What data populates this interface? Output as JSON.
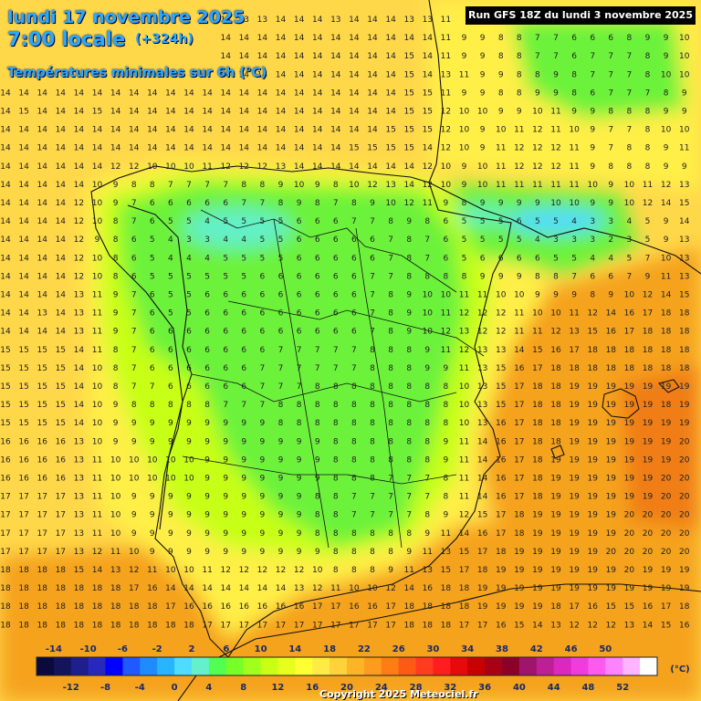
{
  "header": {
    "date": "lundi 17 novembre 2025",
    "time": "7:00 locale",
    "offset": "(+324h)",
    "subtitle": "Températures minimales sur 6h (°C)",
    "run": "Run GFS 18Z du lundi 3 novembre 2025"
  },
  "footer": {
    "copyright": "Copyright 2025 Meteociel.fr"
  },
  "legend": {
    "unit": "(°C)",
    "top_labels": [
      "-14",
      "-10",
      "-6",
      "-2",
      "2",
      "6",
      "10",
      "14",
      "18",
      "22",
      "26",
      "30",
      "34",
      "38",
      "42",
      "46",
      "50"
    ],
    "bottom_labels": [
      "-12",
      "-8",
      "-4",
      "0",
      "4",
      "8",
      "12",
      "16",
      "20",
      "24",
      "28",
      "32",
      "36",
      "40",
      "44",
      "48",
      "52"
    ],
    "colors": [
      "#0a0a3c",
      "#14145a",
      "#1e1e8c",
      "#2828be",
      "#0000ff",
      "#1e5aff",
      "#1e8cff",
      "#28b4ff",
      "#50dcff",
      "#64f0c8",
      "#50ff50",
      "#78ff28",
      "#a0ff1e",
      "#c8ff14",
      "#e6ff1e",
      "#ffff32",
      "#ffeb46",
      "#ffd23c",
      "#ffb428",
      "#ff9b1e",
      "#ff7d14",
      "#ff5a14",
      "#ff3c1e",
      "#ff1e1e",
      "#e60a0a",
      "#c80000",
      "#aa0014",
      "#8c0028",
      "#a0146e",
      "#be1e96",
      "#dc28be",
      "#f03cdc",
      "#ff5af0",
      "#ff82ff",
      "#ffb4ff",
      "#ffffff"
    ]
  },
  "map": {
    "colors": {
      "sea_warm": "#f5a21f",
      "sea_hot": "#f07d14",
      "mild": "#ffd84a",
      "yellow": "#ffef46",
      "yellow_green": "#c8ff14",
      "green": "#6cf23a",
      "cold_cyan": "#64f0c8",
      "border": "#111111"
    },
    "numbers": {
      "rows": [
        "14 14 14 13 13 14 13 13 14 13 13 14 14 13 13 14 14 14 13 14 14 14 13 13 11 11 10 9 10 9 8 8 9 9 9 9 10 10",
        "14 14 14 14 14 14 14 14 14 14 14 14 14 14 14 14 14 14 14 14 14 14 14 14 11 9 9 8 8 7 7 6 6 6 8 9 9 10",
        "14 14 14 14 14 14 14 14 14 14 14 14 14 14 14 14 14 14 14 14 14 14 15 14 11 9 9 8 8 7 7 6 7 7 7 8 9 10",
        "14 14 14 14 14 14 14 14 14 14 14 14 14 14 14 14 14 14 14 14 14 14 15 14 13 11 9 9 8 8 9 8 7 7 7 8 10 10",
        "14 14 14 14 14 14 14 14 14 14 14 14 14 14 14 14 14 14 14 14 14 14 15 15 11 9 9 8 8 9 9 8 6 7 7 7 8 9",
        "14 15 14 14 14 15 14 14 14 14 14 14 14 14 14 14 14 14 14 14 14 14 15 15 12 10 10 9 9 10 11 9 9 8 8 8 9 9",
        "14 14 14 14 14 14 14 14 14 14 14 14 14 14 14 14 14 14 14 14 14 15 15 15 12 10 9 10 11 12 11 10 9 7 7 8 10 10",
        "14 14 14 14 14 14 14 14 14 14 14 14 14 14 14 14 14 14 14 15 15 15 15 14 12 10 9 11 12 12 12 11 9 7 8 8 9 11",
        "14 14 14 14 14 14 12 12 10 10 10 11 12 12 12 13 14 14 14 14 14 14 14 12 10 9 10 11 12 12 12 11 9 8 8 8 9 9",
        "14 14 14 14 14 10 9 8 8 7 7 7 7 8 8 9 10 9 8 10 12 13 14 12 10 9 10 11 11 11 11 11 10 9 10 11 12 13",
        "14 14 14 14 12 10 9 7 6 6 6 6 6 7 7 8 9 8 7 8 9 10 12 11 9 8 9 9 9 9 10 10 9 9 10 12 14 15",
        "14 14 14 14 12 10 8 7 6 5 5 4 5 5 5 5 6 6 6 7 7 8 9 8 6 5 5 5 6 5 5 4 3 3 4 5 9 14",
        "14 14 14 14 12 9 8 6 5 4 3 3 4 4 5 5 6 6 6 6 6 7 8 7 6 5 5 5 5 4 3 3 3 2 3 5 9 13",
        "14 14 14 14 12 10 8 6 5 4 4 4 5 5 5 5 6 6 6 6 6 7 8 7 6 5 6 6 6 6 5 5 4 4 5 7 10 13",
        "14 14 14 14 12 10 8 6 5 5 5 5 5 5 6 6 6 6 6 6 7 7 8 8 8 8 9 9 9 8 8 7 6 6 7 9 11 13",
        "14 14 14 14 13 11 9 7 6 5 5 6 6 6 6 6 6 6 6 6 7 8 9 10 10 11 11 10 10 9 9 9 8 9 10 12 14 15",
        "14 14 13 14 13 11 9 7 6 5 5 6 6 6 6 6 6 6 6 6 7 8 9 10 11 12 12 12 11 10 10 11 12 14 16 17 18 18",
        "14 14 14 14 13 11 9 7 6 6 6 6 6 6 6 6 6 6 6 6 7 8 9 10 12 13 12 12 11 11 12 13 15 16 17 18 18 18",
        "15 15 15 15 14 11 8 7 6 6 6 6 6 6 6 7 7 7 7 7 8 8 8 9 11 12 13 13 14 15 16 17 18 18 18 18 18 18",
        "15 15 15 15 14 10 8 7 6 6 6 6 6 6 7 7 7 7 7 7 8 8 8 9 9 11 13 15 16 17 18 18 18 18 18 18 18 18",
        "15 15 15 15 14 10 8 7 7 6 6 6 6 6 7 7 7 8 8 8 8 8 8 8 8 10 13 15 17 18 18 19 19 19 19 19 19 19",
        "15 15 15 15 14 10 9 8 8 8 8 8 7 7 7 8 8 8 8 8 8 8 8 8 8 10 13 15 17 18 18 19 19 19 19 19 18 19",
        "15 15 15 15 14 10 9 9 9 9 9 9 9 9 9 8 8 8 8 8 8 8 8 8 8 10 13 16 17 18 18 19 19 19 19 19 19 19",
        "16 16 16 16 13 10 9 9 9 9 9 9 9 9 9 9 9 9 8 8 8 8 8 8 9 11 14 16 17 18 18 19 19 19 19 19 19 20",
        "16 16 16 16 13 11 10 10 10 10 10 9 9 9 9 9 9 9 8 8 8 8 8 8 9 11 14 16 17 18 19 19 19 19 19 19 19 20",
        "16 16 16 16 13 11 10 10 10 10 10 9 9 9 9 9 9 9 8 8 8 7 7 7 8 11 14 16 17 18 19 19 19 19 19 19 20 20",
        "17 17 17 17 13 11 10 9 9 9 9 9 9 9 9 9 9 8 8 7 7 7 7 7 8 11 14 16 17 18 19 19 19 19 19 19 20 20",
        "17 17 17 17 13 11 10 9 9 9 9 9 9 9 9 9 9 8 8 7 7 7 7 8 9 12 15 17 18 19 19 19 19 19 20 20 20 20",
        "17 17 17 17 13 11 10 9 9 9 9 9 9 9 9 9 9 8 8 8 8 8 8 9 11 14 16 17 18 19 19 19 19 19 20 20 20 20",
        "17 17 17 17 13 12 11 10 9 9 9 9 9 9 9 9 9 9 8 8 8 8 9 11 13 15 17 18 19 19 19 19 19 20 20 20 20 20",
        "18 18 18 18 15 14 13 12 11 10 10 11 12 12 12 12 12 10 8 8 8 9 11 13 15 17 18 19 19 19 19 19 19 19 20 19 19 19",
        "18 18 18 18 18 18 18 17 16 14 14 14 14 14 14 14 13 12 11 10 10 12 14 16 18 18 19 19 19 19 19 19 19 19 19 19 19 19",
        "18 18 18 18 18 18 18 18 18 17 16 16 16 16 16 16 16 17 17 16 16 17 18 18 18 18 19 19 19 19 18 17 16 15 15 16 17 18",
        "18 18 18 18 18 18 18 18 18 18 18 17 17 17 17 17 17 17 17 17 17 17 18 18 18 17 17 16 15 14 13 12 12 12 13 14 15 16",
        "18 18 18 18 18 18 18 18 18 18 18 17 16 16 17 17 17 17 17 17 18 18 18 18 17 16 15 14 13 12 11 11 11 11 12 13 14 15",
        "18 18 18 18 18 18 18 18 18 18 18 17 16 16 16 17 17 17 17 18 18 18 18 17 16 15 14 13 13 12 12 12 12 12 13 14 15 16",
        "18 18 18 18 18 18 18 18 18 18 18 17 16 16 16 17 17 17 18 18 18 18 17 16 15 15 14 14 13 13 13 13 13 13 14 15 16 16",
        "18 18 19 19 19 19 18 18 18 18 18 17 16 16 16 16 17 17 18 18 17 16 16 15 15 15 14 14 14 14 14 14 14 14 15 15 16 16"
      ]
    }
  }
}
